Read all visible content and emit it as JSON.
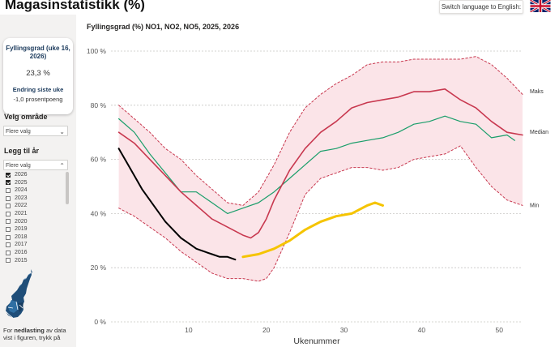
{
  "header": {
    "title": "Magasinstatistikk (%)",
    "language_button": "Switch language to English:",
    "flag_icon": "uk-flag-icon"
  },
  "kpi": {
    "title": "Fyllingsgrad (uke 16, 2026)",
    "value": "23,3 %",
    "change_title": "Endring siste uke",
    "change_value": "-1,0 prosentpoeng"
  },
  "filters": {
    "area_label": "Velg område",
    "area_value": "Flere valg",
    "years_label": "Legg til år",
    "years_value": "Flere valg",
    "years": [
      {
        "label": "2026",
        "checked": true
      },
      {
        "label": "2025",
        "checked": true
      },
      {
        "label": "2024",
        "checked": false
      },
      {
        "label": "2023",
        "checked": false
      },
      {
        "label": "2022",
        "checked": false
      },
      {
        "label": "2021",
        "checked": false
      },
      {
        "label": "2020",
        "checked": false
      },
      {
        "label": "2019",
        "checked": false
      },
      {
        "label": "2018",
        "checked": false
      },
      {
        "label": "2017",
        "checked": false
      },
      {
        "label": "2016",
        "checked": false
      },
      {
        "label": "2015",
        "checked": false
      }
    ]
  },
  "download": {
    "prefix": "For ",
    "bold": "nedlasting",
    "suffix": " av data vist i figuren, trykk på"
  },
  "colors": {
    "median": "#1a9e6a",
    "band_line": "#c8384f",
    "band_fill": "#fbe4e8",
    "y2025": "#c8384f",
    "y2026": "#000000",
    "y2025_late": "#f5c400"
  },
  "chart_data": {
    "type": "line",
    "title": "Fyllingsgrad (%) NO1, NO2, NO5, 2025, 2026",
    "xlabel": "Ukenummer",
    "ylabel": "",
    "xlim": [
      0,
      53
    ],
    "ylim": [
      0,
      100
    ],
    "x_ticks": [
      10,
      20,
      30,
      40,
      50
    ],
    "y_ticks": [
      {
        "v": 0,
        "label": "0 %"
      },
      {
        "v": 20,
        "label": "20 %"
      },
      {
        "v": 40,
        "label": "40 %"
      },
      {
        "v": 60,
        "label": "60 %"
      },
      {
        "v": 80,
        "label": "80 %"
      },
      {
        "v": 100,
        "label": "100 %"
      }
    ],
    "series": [
      {
        "name": "Maks",
        "style": "dotted-red",
        "x": [
          1,
          3,
          5,
          7,
          9,
          11,
          13,
          15,
          17,
          19,
          21,
          23,
          25,
          27,
          29,
          31,
          33,
          35,
          37,
          39,
          41,
          43,
          45,
          47,
          49,
          51,
          53
        ],
        "y": [
          80,
          75,
          70,
          64,
          60,
          54,
          49,
          44,
          43,
          48,
          58,
          70,
          79,
          84,
          88,
          91,
          95,
          96,
          96,
          97,
          97,
          97,
          97,
          98,
          95,
          90,
          84
        ]
      },
      {
        "name": "Min",
        "style": "dotted-red",
        "x": [
          1,
          3,
          5,
          7,
          9,
          11,
          13,
          15,
          17,
          19,
          20,
          21,
          23,
          25,
          27,
          29,
          31,
          33,
          35,
          37,
          39,
          41,
          43,
          45,
          47,
          49,
          51,
          53
        ],
        "y": [
          42,
          39,
          35,
          31,
          26,
          22,
          18,
          16,
          16,
          15,
          16,
          20,
          33,
          47,
          53,
          55,
          57,
          57,
          56,
          57,
          60,
          61,
          62,
          65,
          57,
          50,
          45,
          43
        ]
      },
      {
        "name": "Median",
        "style": "green",
        "x": [
          1,
          3,
          5,
          7,
          9,
          11,
          13,
          15,
          17,
          19,
          21,
          23,
          25,
          27,
          29,
          31,
          33,
          35,
          37,
          39,
          41,
          43,
          45,
          47,
          49,
          51,
          52
        ],
        "y": [
          75,
          70,
          62,
          55,
          48,
          48,
          44,
          40,
          42,
          44,
          48,
          53,
          58,
          63,
          64,
          66,
          67,
          68,
          70,
          73,
          74,
          76,
          74,
          73,
          68,
          69,
          67
        ]
      },
      {
        "name": "2025",
        "style": "red",
        "x": [
          1,
          3,
          5,
          7,
          9,
          11,
          13,
          15,
          17,
          18,
          19,
          20,
          21,
          23,
          25,
          27,
          29,
          31,
          33,
          35,
          37,
          39,
          41,
          43,
          45,
          47,
          49,
          51,
          53
        ],
        "y": [
          70,
          66,
          60,
          54,
          48,
          43,
          38,
          35,
          32,
          31,
          33,
          38,
          45,
          56,
          64,
          70,
          74,
          79,
          81,
          82,
          83,
          85,
          85,
          86,
          82,
          79,
          74,
          70,
          69
        ]
      },
      {
        "name": "2025 (fortsettelse)",
        "style": "yellow",
        "x": [
          17,
          19,
          21,
          23,
          25,
          27,
          29,
          31,
          33,
          34,
          35
        ],
        "y": [
          24,
          25,
          27,
          30,
          34,
          37,
          39,
          40,
          43,
          44,
          43
        ]
      },
      {
        "name": "2026",
        "style": "black",
        "x": [
          1,
          2,
          3,
          4,
          5,
          6,
          7,
          8,
          9,
          10,
          11,
          12,
          13,
          14,
          15,
          16
        ],
        "y": [
          64,
          59,
          54,
          49,
          45,
          41,
          37,
          34,
          31,
          29,
          27,
          26,
          25,
          24,
          24,
          23
        ]
      }
    ],
    "series_labels": [
      {
        "text": "Maks",
        "x": 53,
        "y": 85
      },
      {
        "text": "Median",
        "x": 53,
        "y": 70
      },
      {
        "text": "Min",
        "x": 53,
        "y": 43
      }
    ]
  }
}
